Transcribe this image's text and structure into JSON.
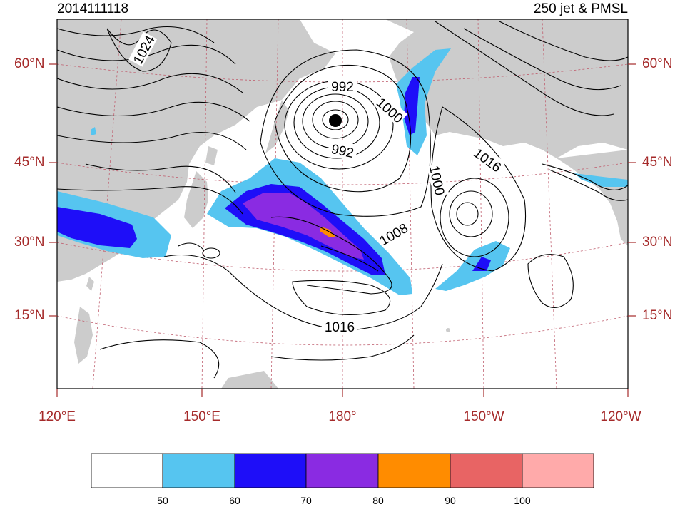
{
  "titles": {
    "left": "2014111118",
    "right": "250 jet & PMSL"
  },
  "lat_ticks": [
    "60°N",
    "45°N",
    "30°N",
    "15°N"
  ],
  "lon_ticks": [
    "120°E",
    "150°E",
    "180°",
    "150°W",
    "120°W"
  ],
  "contour_labels": [
    "1024",
    "992",
    "1000",
    "992",
    "1016",
    "1000",
    "1008",
    "1016"
  ],
  "colorbar": {
    "boundaries": [
      "50",
      "60",
      "70",
      "80",
      "90",
      "100"
    ],
    "colors": [
      "#ffffff",
      "#56c5f0",
      "#1e0ef8",
      "#8a2be2",
      "#ff8c00",
      "#e86464",
      "#ffaaaa"
    ]
  },
  "colors": {
    "land": "#cccccc",
    "axis_label": "#a52a2a",
    "grid": "#c06070",
    "jet_50": "#56c5f0",
    "jet_60": "#1e0ef8",
    "jet_70": "#8a2be2",
    "jet_80": "#ff8c00"
  }
}
